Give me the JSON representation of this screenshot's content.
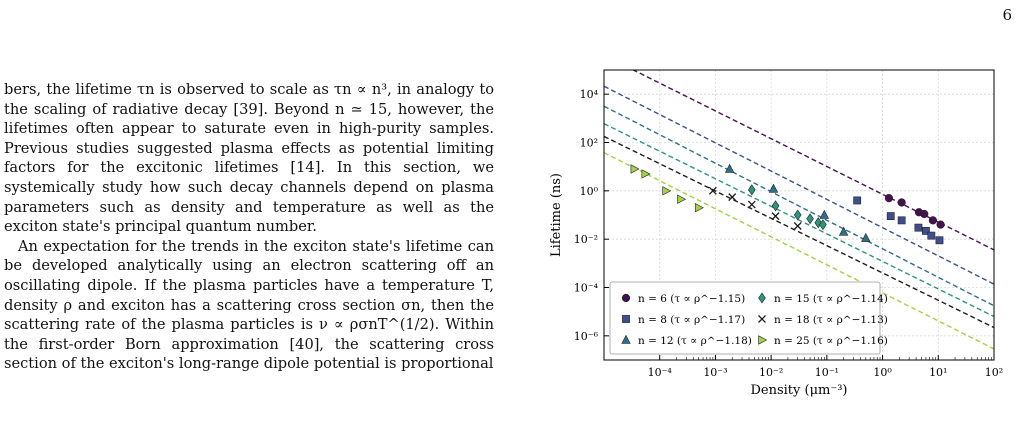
{
  "page": {
    "number": "6"
  },
  "text": {
    "p1": "bers, the lifetime τn is observed to scale as τn ∝ n³, in analogy to the scaling of radiative decay [39]. Beyond n ≃ 15, however, the lifetimes often appear to saturate even in high-purity samples. Previous studies suggested plasma effects as potential limiting factors for the excitonic lifetimes [14]. In this section, we systemically study how such decay channels depend on plasma parameters such as density and temperature as well as the exciton state's principal quantum number.",
    "p2": "An expectation for the trends in the exciton state's lifetime can be developed analytically using an electron scattering off an oscillating dipole. If the plasma particles have a temperature T, density ρ and exciton has a scattering cross section σn, then the scattering rate of the plasma particles is ν ∝ ρσnT^(1/2). Within the first-order Born approximation [40], the scattering cross section of the exciton's long-range dipole potential is proportional"
  },
  "chart_data": {
    "type": "scatter",
    "xlabel": "Density (μm⁻³)",
    "ylabel": "Lifetime (ns)",
    "xscale": "log",
    "yscale": "log",
    "xlim": [
      1e-05,
      100
    ],
    "ylim": [
      1e-07,
      100000
    ],
    "x_ticks": [
      "10⁻⁴",
      "10⁻³",
      "10⁻²",
      "10⁻¹",
      "10⁰",
      "10¹",
      "10²"
    ],
    "y_ticks": [
      "10⁴",
      "10²",
      "10⁰",
      "10⁻²",
      "10⁻⁴",
      "10⁻⁶"
    ],
    "grid": true,
    "legend_placement": "bottom-left",
    "series": [
      {
        "name": "n = 6 (τ ∝ ρ^−1.15)",
        "marker": "circle",
        "color": "#44124f",
        "slope": -1.15,
        "line_intercept": 0.72,
        "x": [
          1.3,
          2.2,
          4.5,
          5.6,
          8.0,
          11.0
        ],
        "y": [
          0.5,
          0.33,
          0.13,
          0.11,
          0.06,
          0.04
        ]
      },
      {
        "name": "n = 8 (τ ∝ ρ^−1.17)",
        "marker": "square",
        "color": "#3f4f8e",
        "slope": -1.17,
        "line_intercept": 0.03,
        "x": [
          0.35,
          1.4,
          2.2,
          4.4,
          6.0,
          7.5,
          10.5
        ],
        "y": [
          0.4,
          0.09,
          0.06,
          0.03,
          0.022,
          0.014,
          0.009
        ]
      },
      {
        "name": "n = 12 (τ ∝ ρ^−1.18)",
        "marker": "triangle",
        "color": "#2f7088",
        "slope": -1.18,
        "line_intercept": 0.004,
        "x": [
          0.0018,
          0.011,
          0.09,
          0.2,
          0.5
        ],
        "y": [
          8,
          1.2,
          0.1,
          0.02,
          0.011
        ]
      },
      {
        "name": "n = 15 (τ ∝ ρ^−1.14)",
        "marker": "diamond",
        "color": "#2c9580",
        "slope": -1.14,
        "line_intercept": 0.0012,
        "x": [
          0.0045,
          0.012,
          0.03,
          0.05,
          0.07,
          0.085
        ],
        "y": [
          1.1,
          0.24,
          0.1,
          0.07,
          0.048,
          0.04
        ]
      },
      {
        "name": "n = 18 (τ ∝ ρ^−1.13)",
        "marker": "cross",
        "color": "#1d1d1d",
        "slope": -1.13,
        "line_intercept": 0.0004,
        "x": [
          0.0009,
          0.002,
          0.0045,
          0.012,
          0.03
        ],
        "y": [
          1.0,
          0.55,
          0.27,
          0.09,
          0.035
        ]
      },
      {
        "name": "n = 25 (τ ∝ ρ^−1.16)",
        "marker": "triangle-right",
        "color": "#a2d246",
        "slope": -1.16,
        "line_intercept": 6e-05,
        "x": [
          3.5e-05,
          5.5e-05,
          0.00013,
          0.00024,
          0.0005
        ],
        "y": [
          8,
          5,
          1.0,
          0.45,
          0.2
        ]
      }
    ]
  }
}
